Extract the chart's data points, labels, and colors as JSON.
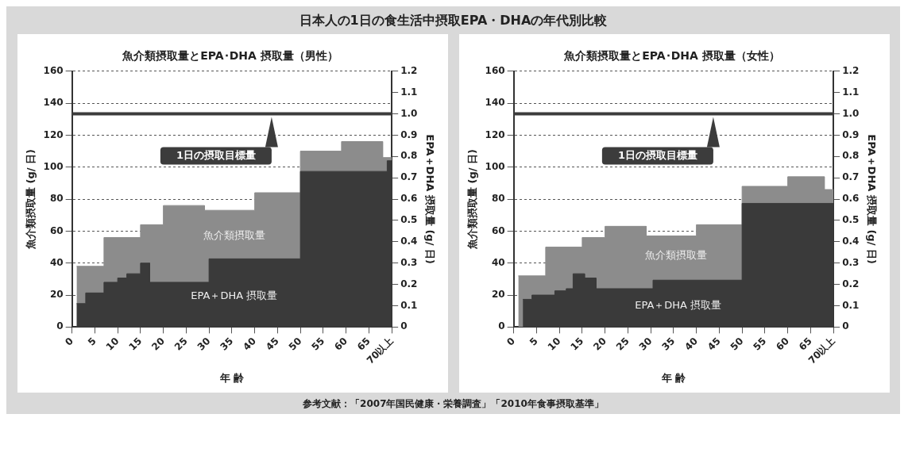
{
  "chart_data": [
    {
      "type": "other",
      "title": "日本人の1日の食生活中摂取EPA・DHAの年代別比較",
      "annotations": [
        "参考文献：「2007年国民健康・栄養調査」「2010年食事摂取基準」"
      ]
    },
    {
      "type": "area",
      "title": "魚介類摂取量とEPA･DHA 摂取量（男性）",
      "xlabel": "年 齢",
      "ylabel": "魚介類摂取量 (g/ 日)",
      "y2label": "EPA＋DHA 摂取量 (g/ 日)",
      "xlim": [
        0,
        70
      ],
      "xticks": [
        0,
        5,
        10,
        15,
        20,
        25,
        30,
        35,
        40,
        45,
        50,
        55,
        60,
        65,
        {
          "value": 70,
          "label": "70以上"
        }
      ],
      "ylim": [
        0,
        160
      ],
      "yticks": [
        0,
        20,
        40,
        60,
        80,
        100,
        120,
        140,
        160
      ],
      "y2lim": [
        0,
        1.2
      ],
      "y2ticks": [
        0,
        0.1,
        0.2,
        0.3,
        0.4,
        0.5,
        0.6,
        0.7,
        0.8,
        0.9,
        {
          "value": 1,
          "label": "1.0"
        },
        1.1,
        1.2
      ],
      "grid": "y",
      "legend": false,
      "series": [
        {
          "name": "魚介類摂取量",
          "color": "#8c8c8c",
          "x": [
            1,
            7,
            7,
            15,
            15,
            20,
            20,
            29,
            29,
            40,
            40,
            50,
            50,
            59,
            59,
            68,
            68,
            70
          ],
          "values": [
            38,
            38,
            56,
            56,
            64,
            64,
            76,
            76,
            73,
            73,
            84,
            84,
            110,
            110,
            116,
            116,
            106,
            106
          ]
        },
        {
          "name": "EPA＋DHA 摂取量",
          "color": "#3a3a3a",
          "axis": "y2",
          "x": [
            1,
            3,
            3,
            7,
            7,
            10,
            10,
            12,
            12,
            15,
            15,
            17,
            17,
            30,
            30,
            50,
            50,
            69,
            69,
            70
          ],
          "values": [
            0.11,
            0.11,
            0.16,
            0.16,
            0.21,
            0.21,
            0.23,
            0.23,
            0.25,
            0.25,
            0.3,
            0.3,
            0.21,
            0.21,
            0.32,
            0.32,
            0.73,
            0.73,
            0.78,
            0.78
          ]
        }
      ],
      "ref_lines": [
        {
          "axis": "y2",
          "value": 1,
          "label": "1日の摂取目標量",
          "color": "#3c3c3c"
        }
      ]
    },
    {
      "type": "area",
      "title": "魚介類摂取量とEPA･DHA 摂取量（女性）",
      "xlabel": "年 齢",
      "ylabel": "魚介類摂取量 (g/ 日)",
      "y2label": "EPA＋DHA 摂取量 (g/ 日)",
      "xlim": [
        0,
        70
      ],
      "xticks": [
        0,
        5,
        10,
        15,
        20,
        25,
        30,
        35,
        40,
        45,
        50,
        55,
        60,
        65,
        {
          "value": 70,
          "label": "70以上"
        }
      ],
      "ylim": [
        0,
        160
      ],
      "yticks": [
        0,
        20,
        40,
        60,
        80,
        100,
        120,
        140,
        160
      ],
      "y2lim": [
        0,
        1.2
      ],
      "y2ticks": [
        0,
        0.1,
        0.2,
        0.3,
        0.4,
        0.5,
        0.6,
        0.7,
        0.8,
        0.9,
        {
          "value": 1,
          "label": "1.0"
        },
        1.1,
        1.2
      ],
      "grid": "y",
      "legend": false,
      "series": [
        {
          "name": "魚介類摂取量",
          "color": "#8c8c8c",
          "x": [
            1,
            7,
            7,
            15,
            15,
            20,
            20,
            29,
            29,
            40,
            40,
            50,
            50,
            60,
            60,
            68,
            68,
            70
          ],
          "values": [
            32,
            32,
            50,
            50,
            56,
            56,
            63,
            63,
            57,
            57,
            64,
            64,
            88,
            88,
            94,
            94,
            86,
            86
          ]
        },
        {
          "name": "EPA＋DHA 摂取量",
          "color": "#3a3a3a",
          "axis": "y2",
          "x": [
            2,
            4,
            4,
            9,
            9,
            11.5,
            11.5,
            13,
            13,
            15.5,
            15.5,
            18,
            18,
            30.5,
            30.5,
            50,
            50,
            70
          ],
          "values": [
            0.13,
            0.13,
            0.15,
            0.15,
            0.17,
            0.17,
            0.18,
            0.18,
            0.25,
            0.25,
            0.23,
            0.23,
            0.18,
            0.18,
            0.22,
            0.22,
            0.58,
            0.58
          ]
        }
      ],
      "ref_lines": [
        {
          "axis": "y2",
          "value": 1,
          "label": "1日の摂取目標量",
          "color": "#3c3c3c"
        }
      ]
    }
  ]
}
